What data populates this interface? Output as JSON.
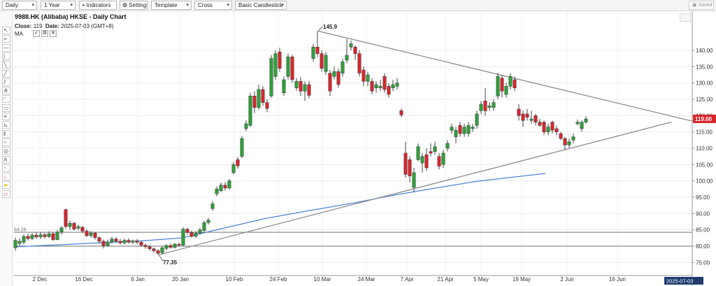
{
  "toolbar": {
    "period": "Daily",
    "range": "1 Year",
    "indicators": "Indicators",
    "settings": "Settings",
    "template": "Template",
    "crosshair": "Cross",
    "chart_style": "Basic Candlestick",
    "saved": "Saved"
  },
  "header": {
    "symbol_title": "9988.HK (Alibaba) HKSE - Daily Chart",
    "close_label": "Close:",
    "close_value": "119",
    "date_label": "Date:",
    "date_value": "2025-07-03 (GMT+8)",
    "ma_label": "MA"
  },
  "tools": [
    "pointer-tool",
    "cursor-tool",
    "horizontal-line-tool",
    "vertical-line-tool",
    "trend-line-tool",
    "ray-tool",
    "parallel-channel-tool",
    "pitchfork-tool",
    "arc-tool",
    "rectangle-tool",
    "fibonacci-tool",
    "gann-fan-tool",
    "cycle-lines-tool",
    "circle-tool",
    "ellipse-tool",
    "text-tool",
    "arrow-up-tool",
    "arrow-down-tool",
    "highlighter-tool",
    "eraser-tool"
  ],
  "chart_data": {
    "type": "candlestick",
    "title": "9988.HK (Alibaba) HKSE - Daily Chart",
    "ylim": [
      73,
      149
    ],
    "y_ticks": [
      "75.00",
      "80.00",
      "85.00",
      "90.00",
      "95.00",
      "100.00",
      "105.00",
      "110.00",
      "115.00",
      "120.00",
      "125.00",
      "130.00",
      "135.00",
      "140.00"
    ],
    "x_ticks": [
      "2 Dec",
      "16 Dec",
      "6 Jan",
      "20 Jan",
      "10 Feb",
      "24 Feb",
      "10 Mar",
      "24 Mar",
      "7 Apr",
      "21 Apr",
      "5 May",
      "19 May",
      "2 Jun",
      "16 Jun"
    ],
    "last_price_label": "119.00",
    "last_date_label": "2025-07-03",
    "ref_line_label": "84.26",
    "annotations": {
      "high": "145.9",
      "low": "77.35"
    },
    "horizontal_levels": [
      84.26,
      80.0
    ],
    "trendlines": [
      {
        "name": "resistance",
        "from": {
          "x": "10 Mar",
          "y": 145.9
        },
        "to": {
          "x": "2025-07-07",
          "y": 117.8
        }
      },
      {
        "name": "support",
        "from": {
          "x": "14 Jan",
          "y": 77.35
        },
        "to": {
          "x": "2025-07-05",
          "y": 118.0
        }
      }
    ],
    "moving_average": {
      "name": "MA",
      "color": "#3a78d8",
      "points": [
        [
          0,
          79.8
        ],
        [
          55,
          80.3
        ],
        [
          120,
          81.0
        ],
        [
          180,
          81.6
        ],
        [
          240,
          82.5
        ],
        [
          300,
          85.5
        ],
        [
          360,
          88.5
        ],
        [
          420,
          90.8
        ],
        [
          480,
          93.0
        ],
        [
          540,
          95.5
        ],
        [
          600,
          97.7
        ],
        [
          660,
          99.8
        ],
        [
          700,
          100.8
        ],
        [
          760,
          102.3
        ]
      ]
    },
    "colors": {
      "up": "#2fa13a",
      "down": "#d9262b",
      "ma": "#3a78d8",
      "trendline": "#8c8c8c",
      "last_price": "#d9262b"
    },
    "candles": [
      {
        "x": 22,
        "o": 79.5,
        "c": 81.8,
        "h": 82.6,
        "l": 78.6
      },
      {
        "x": 28,
        "o": 80.8,
        "c": 81.5,
        "h": 82.5,
        "l": 80.0
      },
      {
        "x": 34,
        "o": 81.2,
        "c": 83.0,
        "h": 83.6,
        "l": 80.5
      },
      {
        "x": 40,
        "o": 83.0,
        "c": 82.3,
        "h": 83.8,
        "l": 81.7
      },
      {
        "x": 46,
        "o": 82.3,
        "c": 83.4,
        "h": 84.0,
        "l": 81.9
      },
      {
        "x": 52,
        "o": 83.4,
        "c": 82.8,
        "h": 84.3,
        "l": 82.2
      },
      {
        "x": 58,
        "o": 82.8,
        "c": 83.5,
        "h": 84.2,
        "l": 82.2
      },
      {
        "x": 64,
        "o": 83.5,
        "c": 82.9,
        "h": 84.0,
        "l": 82.3
      },
      {
        "x": 70,
        "o": 82.9,
        "c": 83.8,
        "h": 84.5,
        "l": 82.5
      },
      {
        "x": 76,
        "o": 83.8,
        "c": 82.0,
        "h": 84.3,
        "l": 81.6
      },
      {
        "x": 82,
        "o": 82.0,
        "c": 84.3,
        "h": 85.0,
        "l": 81.8
      },
      {
        "x": 88,
        "o": 84.3,
        "c": 85.6,
        "h": 86.2,
        "l": 83.6
      },
      {
        "x": 94,
        "o": 91.2,
        "c": 86.0,
        "h": 91.5,
        "l": 85.3
      },
      {
        "x": 100,
        "o": 86.0,
        "c": 87.0,
        "h": 87.8,
        "l": 85.0
      },
      {
        "x": 106,
        "o": 87.0,
        "c": 85.2,
        "h": 87.5,
        "l": 84.8
      },
      {
        "x": 112,
        "o": 85.5,
        "c": 86.0,
        "h": 86.6,
        "l": 84.8
      },
      {
        "x": 118,
        "o": 85.8,
        "c": 84.6,
        "h": 86.2,
        "l": 84.0
      },
      {
        "x": 124,
        "o": 84.6,
        "c": 83.2,
        "h": 85.2,
        "l": 82.8
      },
      {
        "x": 130,
        "o": 83.2,
        "c": 84.0,
        "h": 84.6,
        "l": 82.6
      },
      {
        "x": 136,
        "o": 84.0,
        "c": 82.6,
        "h": 84.4,
        "l": 82.0
      },
      {
        "x": 142,
        "o": 82.6,
        "c": 81.5,
        "h": 83.0,
        "l": 80.8
      },
      {
        "x": 148,
        "o": 81.5,
        "c": 80.2,
        "h": 82.0,
        "l": 79.3
      },
      {
        "x": 154,
        "o": 80.2,
        "c": 81.3,
        "h": 82.0,
        "l": 79.8
      },
      {
        "x": 160,
        "o": 81.3,
        "c": 82.2,
        "h": 82.8,
        "l": 80.8
      },
      {
        "x": 166,
        "o": 82.2,
        "c": 81.5,
        "h": 82.8,
        "l": 81.0
      },
      {
        "x": 172,
        "o": 81.5,
        "c": 81.0,
        "h": 82.2,
        "l": 80.5
      },
      {
        "x": 178,
        "o": 81.0,
        "c": 81.8,
        "h": 82.3,
        "l": 80.5
      },
      {
        "x": 184,
        "o": 81.8,
        "c": 81.2,
        "h": 82.4,
        "l": 80.8
      },
      {
        "x": 190,
        "o": 81.2,
        "c": 81.6,
        "h": 82.0,
        "l": 80.6
      },
      {
        "x": 196,
        "o": 81.6,
        "c": 81.2,
        "h": 82.2,
        "l": 80.6
      },
      {
        "x": 202,
        "o": 81.2,
        "c": 80.3,
        "h": 81.6,
        "l": 79.8
      },
      {
        "x": 208,
        "o": 80.3,
        "c": 79.8,
        "h": 80.8,
        "l": 79.2
      },
      {
        "x": 214,
        "o": 79.8,
        "c": 79.2,
        "h": 80.3,
        "l": 78.6
      },
      {
        "x": 220,
        "o": 79.2,
        "c": 78.6,
        "h": 79.6,
        "l": 78.0
      },
      {
        "x": 226,
        "o": 78.6,
        "c": 77.8,
        "h": 79.0,
        "l": 77.35
      },
      {
        "x": 232,
        "o": 78.0,
        "c": 79.5,
        "h": 80.0,
        "l": 77.6
      },
      {
        "x": 238,
        "o": 79.3,
        "c": 80.2,
        "h": 80.6,
        "l": 78.8
      },
      {
        "x": 244,
        "o": 80.2,
        "c": 79.6,
        "h": 80.8,
        "l": 79.2
      },
      {
        "x": 250,
        "o": 79.6,
        "c": 80.6,
        "h": 81.0,
        "l": 79.3
      },
      {
        "x": 256,
        "o": 80.6,
        "c": 80.3,
        "h": 81.0,
        "l": 79.8
      },
      {
        "x": 262,
        "o": 80.3,
        "c": 85.2,
        "h": 85.8,
        "l": 80.0
      },
      {
        "x": 268,
        "o": 85.2,
        "c": 84.2,
        "h": 85.6,
        "l": 83.6
      },
      {
        "x": 274,
        "o": 84.2,
        "c": 83.0,
        "h": 84.8,
        "l": 82.6
      },
      {
        "x": 280,
        "o": 83.0,
        "c": 84.0,
        "h": 84.6,
        "l": 82.5
      },
      {
        "x": 286,
        "o": 84.0,
        "c": 85.0,
        "h": 85.6,
        "l": 83.6
      },
      {
        "x": 292,
        "o": 84.8,
        "c": 87.2,
        "h": 87.8,
        "l": 84.3
      },
      {
        "x": 298,
        "o": 87.2,
        "c": 88.0,
        "h": 88.6,
        "l": 86.6
      },
      {
        "x": 304,
        "o": 91.5,
        "c": 93.0,
        "h": 93.8,
        "l": 90.8
      },
      {
        "x": 310,
        "o": 96.0,
        "c": 97.5,
        "h": 98.3,
        "l": 95.3
      },
      {
        "x": 316,
        "o": 97.0,
        "c": 98.7,
        "h": 99.5,
        "l": 96.5
      },
      {
        "x": 322,
        "o": 98.7,
        "c": 97.8,
        "h": 99.6,
        "l": 97.0
      },
      {
        "x": 328,
        "o": 97.8,
        "c": 100.0,
        "h": 100.6,
        "l": 97.3
      },
      {
        "x": 334,
        "o": 102.5,
        "c": 105.0,
        "h": 105.8,
        "l": 102.0
      },
      {
        "x": 340,
        "o": 106.5,
        "c": 104.6,
        "h": 107.3,
        "l": 103.8
      },
      {
        "x": 346,
        "o": 107.5,
        "c": 113.0,
        "h": 113.8,
        "l": 107.0
      },
      {
        "x": 352,
        "o": 116.0,
        "c": 117.5,
        "h": 118.5,
        "l": 115.3
      },
      {
        "x": 358,
        "o": 117.0,
        "c": 126.0,
        "h": 127.0,
        "l": 116.6
      },
      {
        "x": 364,
        "o": 126.0,
        "c": 122.5,
        "h": 127.5,
        "l": 120.8
      },
      {
        "x": 370,
        "o": 122.5,
        "c": 128.0,
        "h": 129.5,
        "l": 121.8
      },
      {
        "x": 376,
        "o": 128.0,
        "c": 124.0,
        "h": 129.0,
        "l": 123.0
      },
      {
        "x": 382,
        "o": 124.0,
        "c": 122.2,
        "h": 125.0,
        "l": 121.0
      },
      {
        "x": 388,
        "o": 126.0,
        "c": 137.5,
        "h": 138.5,
        "l": 125.5
      },
      {
        "x": 394,
        "o": 132.0,
        "c": 139.0,
        "h": 140.0,
        "l": 131.0
      },
      {
        "x": 400,
        "o": 139.5,
        "c": 134.5,
        "h": 140.8,
        "l": 133.5
      },
      {
        "x": 406,
        "o": 127.0,
        "c": 131.0,
        "h": 132.0,
        "l": 126.0
      },
      {
        "x": 412,
        "o": 132.0,
        "c": 138.0,
        "h": 139.0,
        "l": 131.0
      },
      {
        "x": 418,
        "o": 138.0,
        "c": 131.0,
        "h": 138.6,
        "l": 130.0
      },
      {
        "x": 424,
        "o": 128.5,
        "c": 130.5,
        "h": 131.5,
        "l": 127.6
      },
      {
        "x": 430,
        "o": 130.5,
        "c": 127.5,
        "h": 131.8,
        "l": 126.0
      },
      {
        "x": 436,
        "o": 127.5,
        "c": 129.5,
        "h": 130.5,
        "l": 124.5
      },
      {
        "x": 442,
        "o": 129.5,
        "c": 126.2,
        "h": 130.6,
        "l": 125.3
      },
      {
        "x": 448,
        "o": 137.5,
        "c": 141.0,
        "h": 142.0,
        "l": 136.5
      },
      {
        "x": 454,
        "o": 141.0,
        "c": 139.0,
        "h": 145.9,
        "l": 138.0
      },
      {
        "x": 460,
        "o": 139.0,
        "c": 134.5,
        "h": 140.0,
        "l": 133.5
      },
      {
        "x": 466,
        "o": 133.5,
        "c": 138.5,
        "h": 139.5,
        "l": 132.5
      },
      {
        "x": 472,
        "o": 133.0,
        "c": 127.5,
        "h": 134.0,
        "l": 126.0
      },
      {
        "x": 478,
        "o": 132.0,
        "c": 133.5,
        "h": 135.0,
        "l": 131.0
      },
      {
        "x": 484,
        "o": 133.5,
        "c": 129.5,
        "h": 134.5,
        "l": 128.5
      },
      {
        "x": 490,
        "o": 133.0,
        "c": 136.5,
        "h": 137.5,
        "l": 132.0
      },
      {
        "x": 496,
        "o": 137.0,
        "c": 138.5,
        "h": 143.5,
        "l": 136.0
      },
      {
        "x": 502,
        "o": 141.0,
        "c": 142.0,
        "h": 143.0,
        "l": 140.0
      },
      {
        "x": 508,
        "o": 141.0,
        "c": 139.0,
        "h": 141.5,
        "l": 137.0
      },
      {
        "x": 514,
        "o": 139.0,
        "c": 133.0,
        "h": 140.0,
        "l": 132.0
      },
      {
        "x": 520,
        "o": 134.0,
        "c": 130.5,
        "h": 135.0,
        "l": 129.0
      },
      {
        "x": 526,
        "o": 130.5,
        "c": 132.5,
        "h": 133.5,
        "l": 129.0
      },
      {
        "x": 532,
        "o": 130.5,
        "c": 127.5,
        "h": 131.5,
        "l": 126.5
      },
      {
        "x": 538,
        "o": 128.5,
        "c": 129.5,
        "h": 130.5,
        "l": 127.0
      },
      {
        "x": 544,
        "o": 128.5,
        "c": 129.0,
        "h": 131.0,
        "l": 127.5
      },
      {
        "x": 550,
        "o": 132.0,
        "c": 128.0,
        "h": 133.0,
        "l": 127.0
      },
      {
        "x": 556,
        "o": 129.0,
        "c": 126.5,
        "h": 130.0,
        "l": 125.5
      },
      {
        "x": 562,
        "o": 128.5,
        "c": 129.5,
        "h": 131.0,
        "l": 127.5
      },
      {
        "x": 568,
        "o": 129.0,
        "c": 130.0,
        "h": 131.5,
        "l": 128.0
      },
      {
        "x": 574,
        "o": 121.5,
        "c": 120.2,
        "h": 122.2,
        "l": 119.5
      },
      {
        "x": 580,
        "o": 108.5,
        "c": 102.0,
        "h": 112.0,
        "l": 101.0
      },
      {
        "x": 586,
        "o": 106.5,
        "c": 101.5,
        "h": 107.5,
        "l": 99.5
      },
      {
        "x": 592,
        "o": 98.0,
        "c": 102.5,
        "h": 104.0,
        "l": 96.5
      },
      {
        "x": 598,
        "o": 106.5,
        "c": 110.5,
        "h": 111.5,
        "l": 106.0
      },
      {
        "x": 604,
        "o": 105.5,
        "c": 107.5,
        "h": 108.5,
        "l": 102.5
      },
      {
        "x": 610,
        "o": 108.0,
        "c": 104.0,
        "h": 110.0,
        "l": 103.0
      },
      {
        "x": 616,
        "o": 109.0,
        "c": 108.5,
        "h": 111.5,
        "l": 107.5
      },
      {
        "x": 622,
        "o": 109.0,
        "c": 110.5,
        "h": 112.0,
        "l": 108.0
      },
      {
        "x": 628,
        "o": 107.5,
        "c": 104.5,
        "h": 108.5,
        "l": 103.5
      },
      {
        "x": 634,
        "o": 105.0,
        "c": 108.5,
        "h": 109.5,
        "l": 104.0
      },
      {
        "x": 640,
        "o": 110.0,
        "c": 111.5,
        "h": 112.5,
        "l": 109.0
      },
      {
        "x": 646,
        "o": 115.5,
        "c": 116.5,
        "h": 117.5,
        "l": 114.5
      },
      {
        "x": 652,
        "o": 113.5,
        "c": 115.5,
        "h": 116.5,
        "l": 111.5
      },
      {
        "x": 658,
        "o": 117.0,
        "c": 114.5,
        "h": 118.0,
        "l": 113.5
      },
      {
        "x": 664,
        "o": 114.5,
        "c": 116.5,
        "h": 117.5,
        "l": 113.5
      },
      {
        "x": 670,
        "o": 114.5,
        "c": 117.0,
        "h": 118.0,
        "l": 113.5
      },
      {
        "x": 676,
        "o": 116.0,
        "c": 116.5,
        "h": 117.5,
        "l": 115.0
      },
      {
        "x": 682,
        "o": 117.0,
        "c": 120.5,
        "h": 121.5,
        "l": 116.0
      },
      {
        "x": 688,
        "o": 121.5,
        "c": 123.5,
        "h": 124.5,
        "l": 120.5
      },
      {
        "x": 694,
        "o": 124.5,
        "c": 121.5,
        "h": 128.5,
        "l": 120.0
      },
      {
        "x": 700,
        "o": 122.5,
        "c": 123.0,
        "h": 124.0,
        "l": 121.5
      },
      {
        "x": 706,
        "o": 122.5,
        "c": 124.0,
        "h": 125.0,
        "l": 121.5
      },
      {
        "x": 712,
        "o": 126.0,
        "c": 132.0,
        "h": 133.0,
        "l": 125.0
      },
      {
        "x": 718,
        "o": 131.5,
        "c": 127.5,
        "h": 132.5,
        "l": 125.5
      },
      {
        "x": 724,
        "o": 126.5,
        "c": 129.0,
        "h": 130.0,
        "l": 125.5
      },
      {
        "x": 730,
        "o": 129.0,
        "c": 132.0,
        "h": 133.0,
        "l": 128.0
      },
      {
        "x": 736,
        "o": 131.0,
        "c": 128.5,
        "h": 132.0,
        "l": 127.5
      },
      {
        "x": 742,
        "o": 122.0,
        "c": 120.0,
        "h": 123.5,
        "l": 118.5
      },
      {
        "x": 748,
        "o": 120.5,
        "c": 118.5,
        "h": 121.5,
        "l": 116.5
      },
      {
        "x": 754,
        "o": 120.5,
        "c": 119.5,
        "h": 122.0,
        "l": 118.5
      },
      {
        "x": 760,
        "o": 118.5,
        "c": 119.0,
        "h": 121.5,
        "l": 117.5
      },
      {
        "x": 766,
        "o": 120.0,
        "c": 118.0,
        "h": 120.5,
        "l": 117.0
      },
      {
        "x": 772,
        "o": 118.0,
        "c": 117.0,
        "h": 119.0,
        "l": 116.5
      },
      {
        "x": 778,
        "o": 118.0,
        "c": 115.0,
        "h": 118.5,
        "l": 114.0
      },
      {
        "x": 784,
        "o": 115.0,
        "c": 116.5,
        "h": 117.5,
        "l": 114.0
      },
      {
        "x": 790,
        "o": 118.0,
        "c": 115.5,
        "h": 118.5,
        "l": 114.5
      },
      {
        "x": 796,
        "o": 116.0,
        "c": 115.0,
        "h": 117.0,
        "l": 114.0
      },
      {
        "x": 802,
        "o": 114.5,
        "c": 113.0,
        "h": 115.0,
        "l": 112.5
      },
      {
        "x": 808,
        "o": 113.0,
        "c": 111.0,
        "h": 113.5,
        "l": 109.5
      },
      {
        "x": 814,
        "o": 111.0,
        "c": 112.0,
        "h": 113.0,
        "l": 110.0
      },
      {
        "x": 820,
        "o": 112.5,
        "c": 113.5,
        "h": 114.5,
        "l": 111.5
      },
      {
        "x": 826,
        "o": 117.5,
        "c": 118.0,
        "h": 118.8,
        "l": 117.0
      },
      {
        "x": 832,
        "o": 116.0,
        "c": 118.0,
        "h": 118.5,
        "l": 115.0
      },
      {
        "x": 838,
        "o": 118.0,
        "c": 119.0,
        "h": 119.8,
        "l": 117.5
      }
    ]
  }
}
